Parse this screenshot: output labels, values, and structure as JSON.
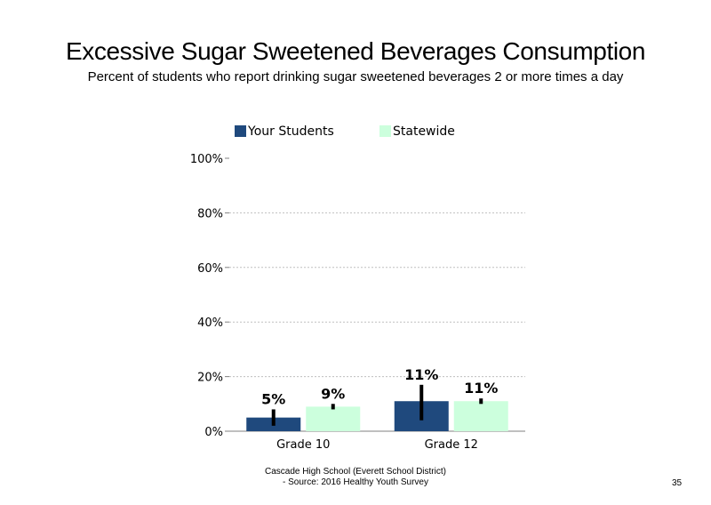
{
  "slide": {
    "title": "Excessive Sugar Sweetened Beverages Consumption",
    "subtitle": "Percent of students who report drinking sugar sweetened beverages 2 or more times a day",
    "footer_line1": "Cascade High School (Everett School District)",
    "footer_line2": "- Source: 2016 Healthy Youth Survey",
    "page_number": "35"
  },
  "colors": {
    "your_students": "#1f497d",
    "statewide": "#ccffdd",
    "error_bar": "#000000",
    "grid": "#bfbfbf"
  },
  "chart_data": {
    "type": "bar",
    "title": "",
    "xlabel": "",
    "ylabel": "",
    "categories": [
      "Grade 10",
      "Grade 12"
    ],
    "series": [
      {
        "name": "Your Students",
        "values": [
          5,
          11
        ],
        "labels": [
          "5%",
          "11%"
        ],
        "ci_low": [
          2,
          4
        ],
        "ci_high": [
          8,
          17
        ]
      },
      {
        "name": "Statewide",
        "values": [
          9,
          11
        ],
        "labels": [
          "9%",
          "11%"
        ],
        "ci_low": [
          8,
          10
        ],
        "ci_high": [
          10,
          12
        ]
      }
    ],
    "ylim": [
      0,
      100
    ],
    "yticks": [
      0,
      20,
      40,
      60,
      80,
      100
    ],
    "ytick_labels": [
      "0%",
      "20%",
      "40%",
      "60%",
      "80%",
      "100%"
    ],
    "grid": true,
    "legend": "top"
  }
}
